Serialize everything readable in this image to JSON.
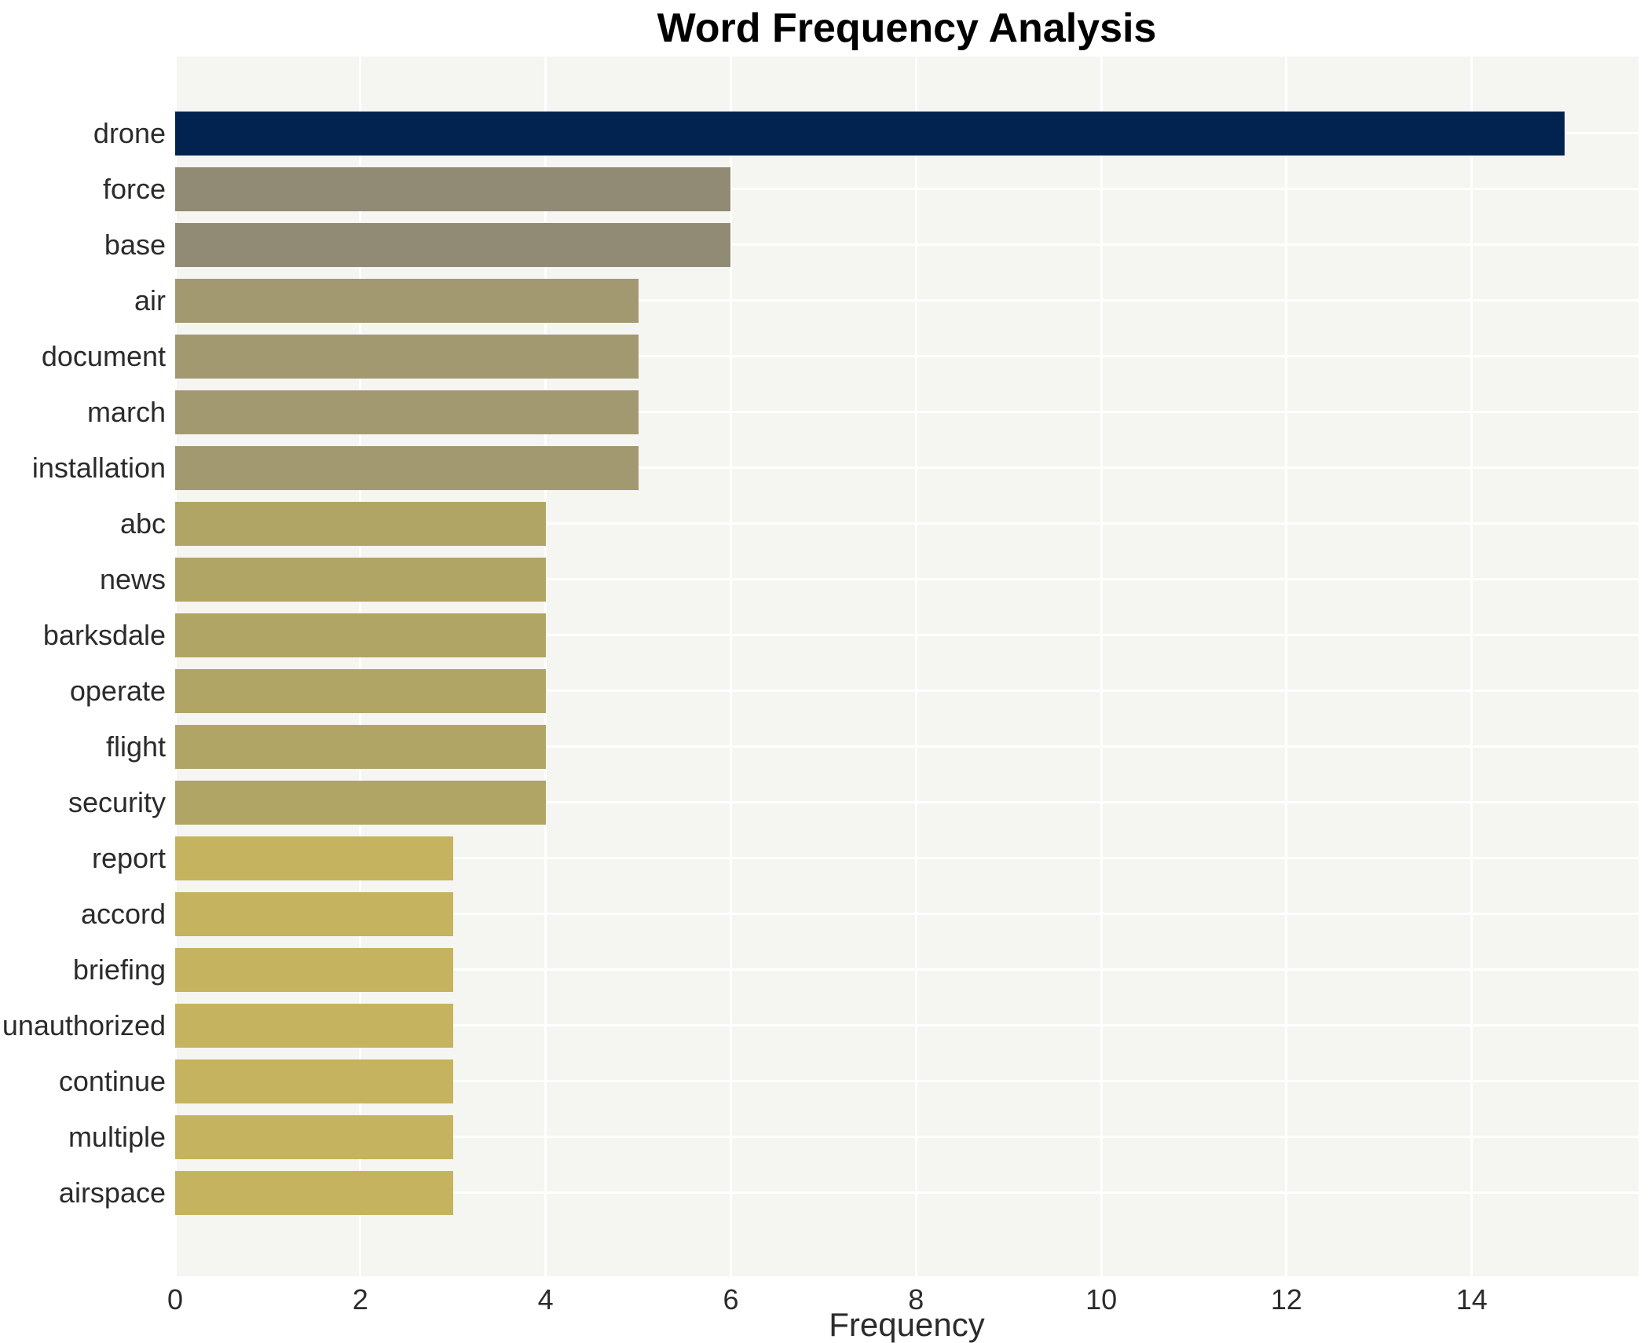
{
  "chart_data": {
    "type": "bar",
    "orientation": "horizontal",
    "title": "Word Frequency Analysis",
    "xlabel": "Frequency",
    "ylabel": "",
    "xlim": [
      0,
      15.8
    ],
    "xticks": [
      0,
      2,
      4,
      6,
      8,
      10,
      12,
      14
    ],
    "grid": true,
    "legend": false,
    "plot_bg_color": "#f5f5f2",
    "grid_color": "#ffffff",
    "title_color": "#000000",
    "tick_label_color": "#2b2b2b",
    "categories": [
      "drone",
      "force",
      "base",
      "air",
      "document",
      "march",
      "installation",
      "abc",
      "news",
      "barksdale",
      "operate",
      "flight",
      "security",
      "report",
      "accord",
      "briefing",
      "unauthorized",
      "continue",
      "multiple",
      "airspace"
    ],
    "values": [
      15,
      6,
      6,
      5,
      5,
      5,
      5,
      4,
      4,
      4,
      4,
      4,
      4,
      3,
      3,
      3,
      3,
      3,
      3,
      3
    ],
    "bar_colors": [
      "#022350",
      "#918a75",
      "#918a75",
      "#a29971",
      "#a29971",
      "#a29971",
      "#a29971",
      "#b1a566",
      "#b1a566",
      "#b1a566",
      "#b1a566",
      "#b1a566",
      "#b1a566",
      "#c5b35f",
      "#c5b35f",
      "#c5b35f",
      "#c5b35f",
      "#c5b35f",
      "#c5b35f",
      "#c5b35f"
    ]
  }
}
